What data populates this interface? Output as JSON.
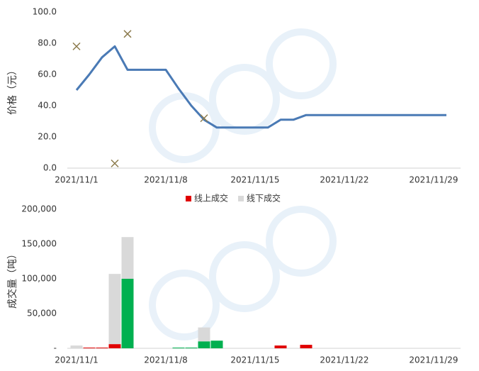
{
  "chart_data": [
    {
      "type": "line",
      "y_label": "价格（元）",
      "categories": [
        "2021/11/1",
        null,
        null,
        null,
        null,
        null,
        null,
        "2021/11/8",
        null,
        null,
        null,
        null,
        null,
        null,
        "2021/11/15",
        null,
        null,
        null,
        null,
        null,
        null,
        "2021/11/22",
        null,
        null,
        null,
        null,
        null,
        null,
        "2021/11/29",
        null
      ],
      "series": [
        {
          "color": "#4a7ab5",
          "marker": "line",
          "values": [
            50,
            60,
            71,
            78,
            63,
            63,
            63,
            63,
            51,
            40,
            31,
            26,
            26,
            26,
            26,
            26,
            31,
            31,
            34,
            34,
            34,
            34,
            34,
            34,
            34,
            34,
            34,
            34,
            34,
            34
          ]
        },
        {
          "color": "#8c7b4d",
          "marker": "x",
          "values": [
            78,
            null,
            null,
            3,
            86,
            null,
            null,
            null,
            null,
            null,
            32,
            null,
            null,
            null,
            null,
            null,
            null,
            null,
            null,
            null,
            null,
            null,
            null,
            null,
            null,
            null,
            null,
            null,
            null,
            null
          ]
        }
      ],
      "ylim": [
        0,
        100
      ],
      "yticks": [
        {
          "value": 0,
          "label": "0.0"
        },
        {
          "value": 20,
          "label": "20.0"
        },
        {
          "value": 40,
          "label": "40.0"
        },
        {
          "value": 60,
          "label": "60.0"
        },
        {
          "value": 80,
          "label": "80.0"
        },
        {
          "value": 100,
          "label": "100.0"
        }
      ]
    },
    {
      "type": "bar",
      "stacked": true,
      "y_label": "成交量（吨）",
      "legend": "top",
      "categories": [
        "2021/11/1",
        null,
        null,
        null,
        null,
        null,
        null,
        "2021/11/8",
        null,
        null,
        null,
        null,
        null,
        null,
        "2021/11/15",
        null,
        null,
        null,
        null,
        null,
        null,
        "2021/11/22",
        null,
        null,
        null,
        null,
        null,
        null,
        "2021/11/29",
        null
      ],
      "series": [
        {
          "name": "线上成交",
          "color": "#e00000",
          "values": [
            null,
            1000,
            1000,
            6000,
            null,
            null,
            null,
            null,
            null,
            null,
            null,
            null,
            null,
            null,
            null,
            null,
            4000,
            null,
            5000,
            null,
            null,
            null,
            null,
            null,
            null,
            null,
            null,
            null,
            null,
            null
          ]
        },
        {
          "color": "#00b050",
          "values": [
            null,
            null,
            null,
            null,
            100000,
            null,
            null,
            null,
            1000,
            1000,
            10000,
            11000,
            null,
            null,
            null,
            null,
            null,
            null,
            null,
            null,
            null,
            null,
            null,
            null,
            null,
            null,
            null,
            null,
            null,
            null
          ]
        },
        {
          "name": "线下成交",
          "color": "#d9d9d9",
          "values": [
            4000,
            null,
            null,
            101000,
            60000,
            null,
            null,
            null,
            null,
            null,
            20000,
            null,
            null,
            null,
            null,
            null,
            null,
            null,
            null,
            null,
            null,
            null,
            null,
            null,
            null,
            null,
            null,
            null,
            null,
            null
          ]
        }
      ],
      "ylim": [
        0,
        200000
      ],
      "yticks": [
        {
          "value": 0,
          "label": "-"
        },
        {
          "value": 50000,
          "label": "50,000"
        },
        {
          "value": 100000,
          "label": "100,000"
        },
        {
          "value": 150000,
          "label": "150,000"
        },
        {
          "value": 200000,
          "label": "200,000"
        }
      ]
    }
  ]
}
